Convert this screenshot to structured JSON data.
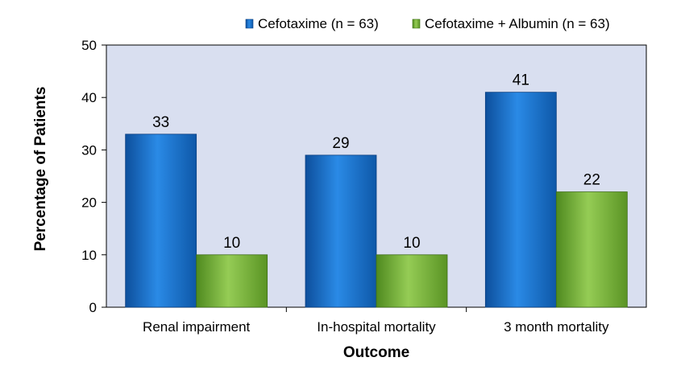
{
  "chart_data": {
    "type": "bar",
    "categories": [
      "Renal impairment",
      "In-hospital mortality",
      "3 month mortality"
    ],
    "series": [
      {
        "name": "Cefotaxime (n = 63)",
        "values": [
          33,
          29,
          41
        ],
        "color": "#1a72c9"
      },
      {
        "name": "Cefotaxime + Albumin (n = 63)",
        "values": [
          10,
          10,
          22
        ],
        "color": "#7dbb3c"
      }
    ],
    "xlabel": "Outcome",
    "ylabel": "Percentage of Patients",
    "ylim": [
      0,
      50
    ],
    "yticks": [
      "0",
      "10",
      "20",
      "30",
      "40",
      "50"
    ],
    "grid": false,
    "legend_position": "top-right",
    "plot_background": "#d9dff0"
  }
}
